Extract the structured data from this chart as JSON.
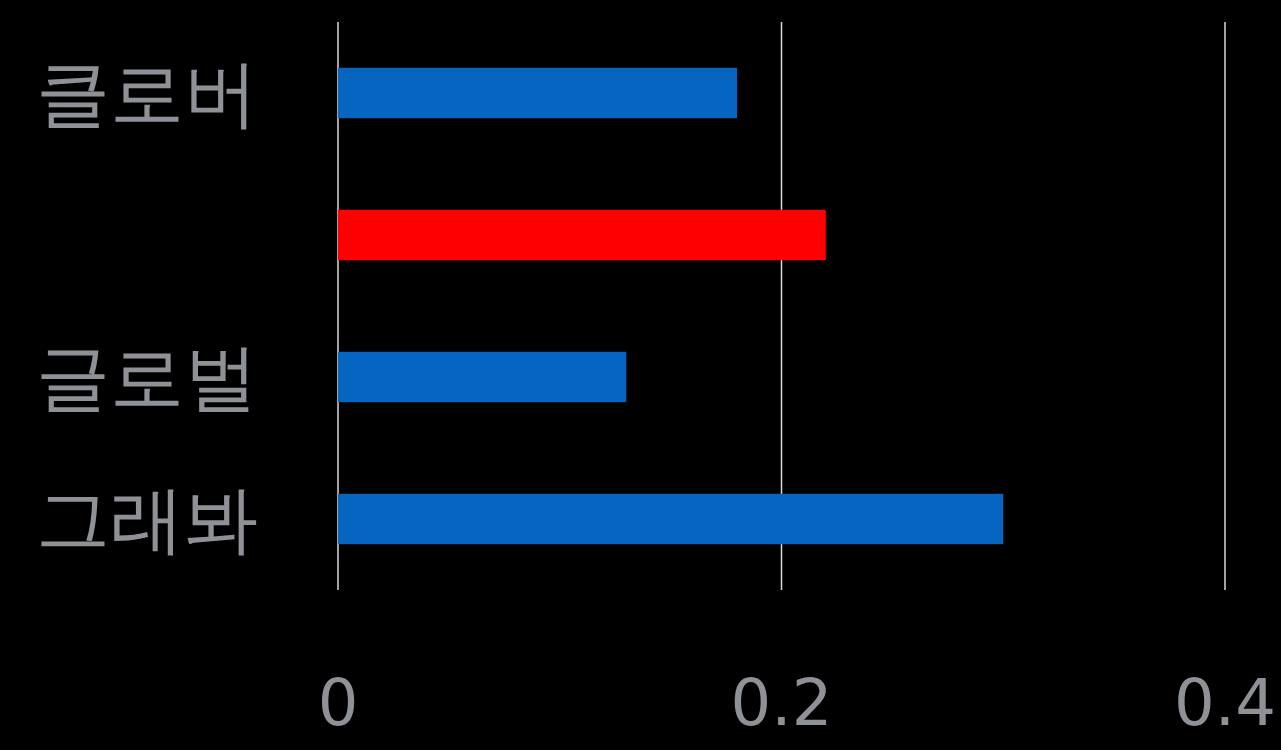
{
  "chart_data": {
    "type": "bar",
    "orientation": "horizontal",
    "categories": [
      "클로버",
      null,
      "글로벌",
      "그래봐"
    ],
    "values": [
      0.18,
      0.22,
      0.13,
      0.3
    ],
    "colors": [
      "#0565c0",
      "#ff0000",
      "#0565c0",
      "#0565c0"
    ],
    "xlim": [
      0,
      0.4
    ],
    "xticks": [
      0,
      0.2,
      0.4
    ],
    "grid": "x"
  }
}
